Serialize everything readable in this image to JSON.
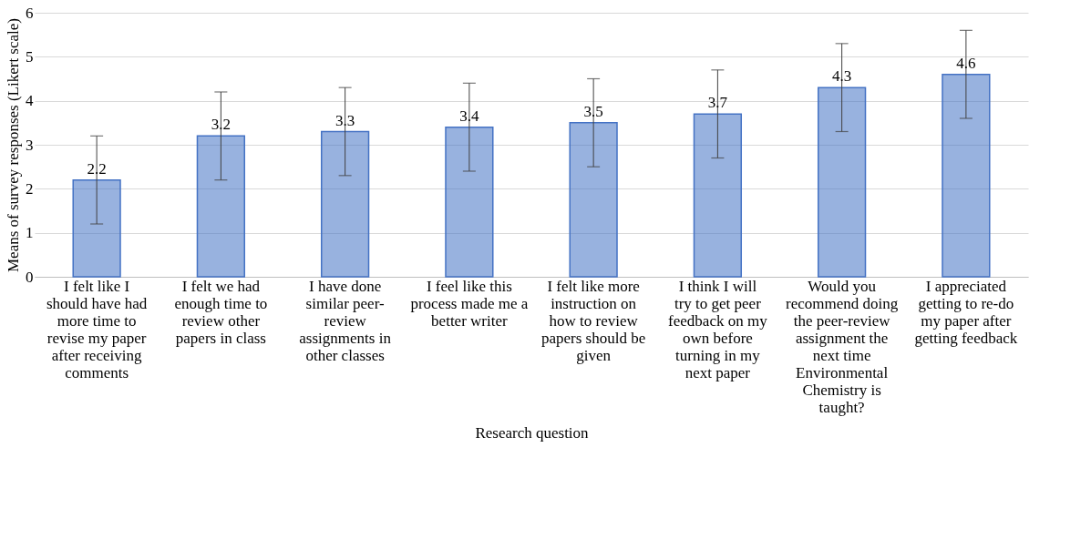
{
  "chart_data": {
    "type": "bar",
    "xlabel": "Research question",
    "ylabel": "Means of survey responses (Likert scale)",
    "categories": [
      "I felt like I should have had more time to revise my paper after receiving comments",
      "I felt we had enough time to review other papers in class",
      "I have done similar peer-review assignments in other classes",
      "I feel like this process made me a better writer",
      "I felt like more instruction on how to review papers should be given",
      "I think I will try to get peer feedback on my own before turning in my next paper",
      "Would you recommend doing the peer-review assignment the next time Environmental Chemistry is taught?",
      "I appreciated getting to  re-do my paper after getting feedback"
    ],
    "values": [
      2.2,
      3.2,
      3.3,
      3.4,
      3.5,
      3.7,
      4.3,
      4.6
    ],
    "errors": [
      1,
      1,
      1,
      1,
      1,
      1,
      1,
      1
    ],
    "color": "#4472c4",
    "ylim": [
      0,
      6
    ],
    "yticks": [
      0,
      1,
      2,
      3,
      4,
      5,
      6
    ],
    "grid": "y",
    "data_labels": true
  }
}
